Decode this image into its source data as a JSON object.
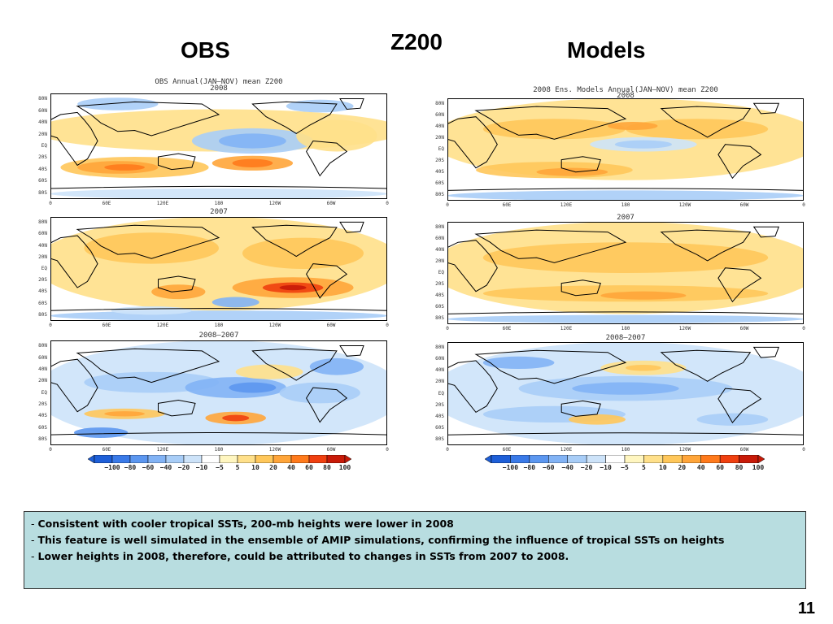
{
  "slide": {
    "title": "Z200",
    "left_heading": "OBS",
    "right_heading": "Models",
    "page_number": "11"
  },
  "obs": {
    "main_title": "OBS Annual(JAN–NOV) mean Z200",
    "panels": [
      {
        "caption": "2008"
      },
      {
        "caption": "2007"
      },
      {
        "caption": "2008–2007"
      }
    ]
  },
  "models": {
    "main_title": "2008 Ens. Models Annual(JAN–NOV) mean Z200",
    "panels": [
      {
        "caption": "2008"
      },
      {
        "caption": "2007"
      },
      {
        "caption": "2008–2007"
      }
    ]
  },
  "axes": {
    "lat_labels": [
      "80N",
      "60N",
      "40N",
      "20N",
      "EQ",
      "20S",
      "40S",
      "60S",
      "80S"
    ],
    "lon_labels": [
      "0",
      "60E",
      "120E",
      "180",
      "120W",
      "60W",
      "0"
    ]
  },
  "colorbar": {
    "labels": [
      "−100",
      "−80",
      "−60",
      "−40",
      "−20",
      "−10",
      "−5",
      "5",
      "10",
      "20",
      "40",
      "60",
      "80",
      "100"
    ],
    "colors": [
      "#1e5fd8",
      "#3a7ae8",
      "#5c97f0",
      "#82b3f5",
      "#a8cdf7",
      "#cde3f9",
      "#ffffff",
      "#fff6c0",
      "#ffe08a",
      "#ffc75a",
      "#ffa53a",
      "#ff7a1c",
      "#f04010",
      "#c81a08"
    ]
  },
  "notes": [
    "Consistent with cooler tropical SSTs, 200-mb heights were lower in 2008",
    "This feature is well simulated in the ensemble of AMIP simulations, confirming the influence of tropical SSTs on heights",
    "Lower heights in 2008, therefore, could be attributed to changes in SSTs from 2007 to 2008."
  ]
}
